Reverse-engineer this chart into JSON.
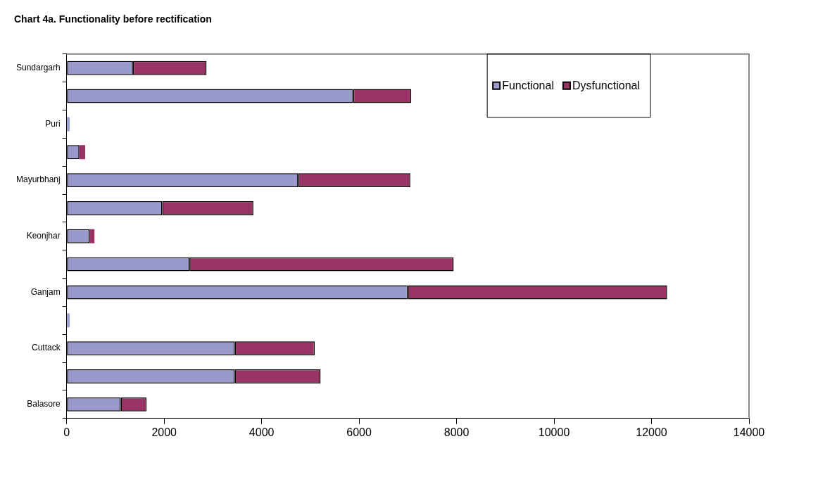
{
  "chart_data": {
    "type": "bar",
    "orientation": "horizontal",
    "stacked": true,
    "title": "Chart 4a. Functionality before rectification",
    "categories": [
      "Sundargarh",
      null,
      "Puri",
      null,
      "Mayurbhanj",
      null,
      "Keonjhar",
      null,
      "Ganjam",
      null,
      "Cuttack",
      null,
      "Balasore"
    ],
    "series": [
      {
        "name": "Functional",
        "color": "#9999cc",
        "values": [
          1360,
          5880,
          60,
          260,
          4750,
          1960,
          470,
          2520,
          7000,
          60,
          3450,
          3450,
          1110
        ]
      },
      {
        "name": "Dysfunctional",
        "color": "#993366",
        "values": [
          1510,
          1190,
          null,
          120,
          2300,
          1870,
          100,
          5420,
          5320,
          null,
          1640,
          1760,
          530
        ]
      }
    ],
    "xlim": [
      0,
      14000
    ],
    "xticks": [
      0,
      2000,
      4000,
      6000,
      8000,
      10000,
      12000,
      14000
    ],
    "legend": "top right"
  }
}
